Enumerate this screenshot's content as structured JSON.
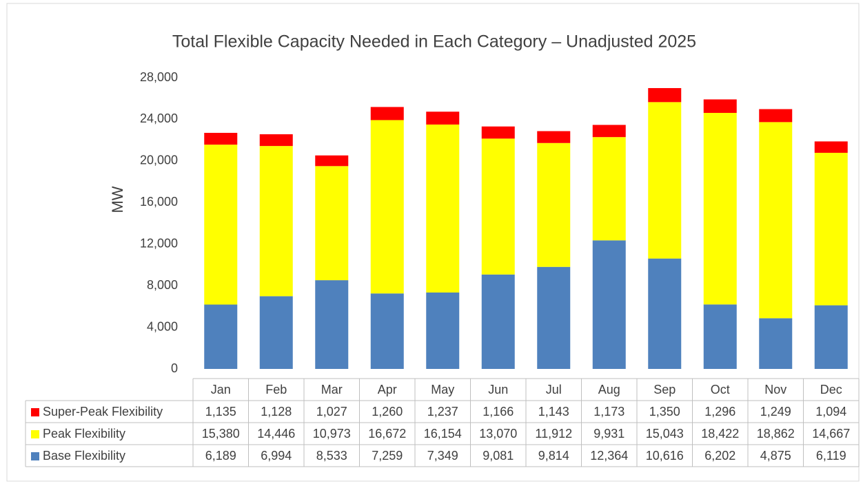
{
  "chart_data": {
    "type": "bar",
    "stacked": true,
    "title": "Total Flexible Capacity Needed in Each Category – Unadjusted 2025",
    "y_label": "MW",
    "categories": [
      "Jan",
      "Feb",
      "Mar",
      "Apr",
      "May",
      "Jun",
      "Jul",
      "Aug",
      "Sep",
      "Oct",
      "Nov",
      "Dec"
    ],
    "series": [
      {
        "name": "Base Flexibility",
        "color": "#4f81bd",
        "values": [
          6189,
          6994,
          8533,
          7259,
          7349,
          9081,
          9814,
          12364,
          10616,
          6202,
          4875,
          6119
        ],
        "value_labels": [
          "6,189",
          "6,994",
          "8,533",
          "7,259",
          "7,349",
          "9,081",
          "9,814",
          "12,364",
          "10,616",
          "6,202",
          "4,875",
          "6,119"
        ]
      },
      {
        "name": "Peak Flexibility",
        "color": "#ffff00",
        "values": [
          15380,
          14446,
          10973,
          16672,
          16154,
          13070,
          11912,
          9931,
          15043,
          18422,
          18862,
          14667
        ],
        "value_labels": [
          "15,380",
          "14,446",
          "10,973",
          "16,672",
          "16,154",
          "13,070",
          "11,912",
          "9,931",
          "15,043",
          "18,422",
          "18,862",
          "14,667"
        ]
      },
      {
        "name": "Super-Peak Flexibility",
        "color": "#ff0000",
        "values": [
          1135,
          1128,
          1027,
          1260,
          1237,
          1166,
          1143,
          1173,
          1350,
          1296,
          1249,
          1094
        ],
        "value_labels": [
          "1,135",
          "1,128",
          "1,027",
          "1,260",
          "1,237",
          "1,166",
          "1,143",
          "1,173",
          "1,350",
          "1,296",
          "1,249",
          "1,094"
        ]
      }
    ],
    "ylim": [
      0,
      28000
    ],
    "yticks": [
      0,
      {
        "value": 4000,
        "label": "4,000"
      },
      {
        "value": 8000,
        "label": "8,000"
      },
      {
        "value": 12000,
        "label": "12,000"
      },
      {
        "value": 16000,
        "label": "16,000"
      },
      {
        "value": 20000,
        "label": "20,000"
      },
      {
        "value": 24000,
        "label": "24,000"
      },
      {
        "value": 28000,
        "label": "28,000"
      }
    ],
    "grid": false
  }
}
